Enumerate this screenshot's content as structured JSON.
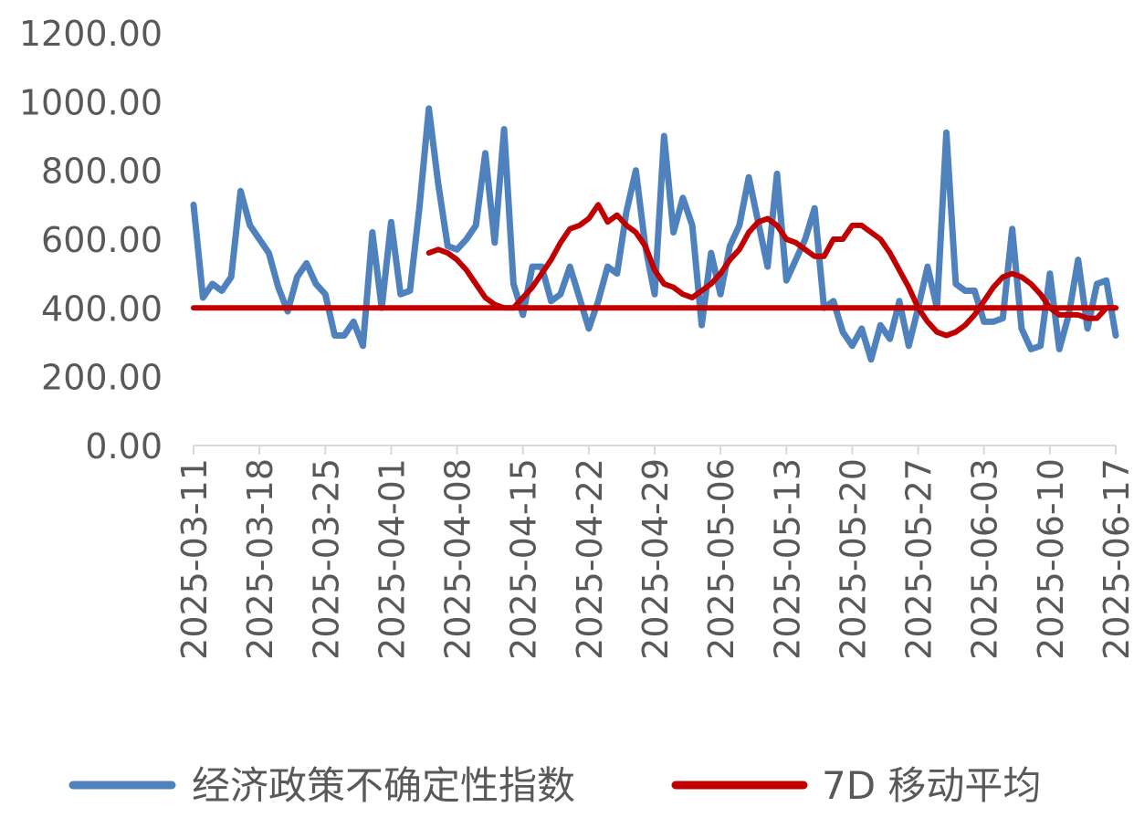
{
  "chart_data": {
    "type": "line",
    "title": "",
    "xlabel": "",
    "ylabel": "",
    "ylim": [
      0,
      1200
    ],
    "yticks": [
      "0.00",
      "200.00",
      "400.00",
      "600.00",
      "800.00",
      "1000.00",
      "1200.00"
    ],
    "xticks": [
      "2025-03-11",
      "2025-03-18",
      "2025-03-25",
      "2025-04-01",
      "2025-04-08",
      "2025-04-15",
      "2025-04-22",
      "2025-04-29",
      "2025-05-06",
      "2025-05-13",
      "2025-05-20",
      "2025-05-27",
      "2025-06-03",
      "2025-06-10",
      "2025-06-17"
    ],
    "x_start": "2025-03-11",
    "grid": false,
    "legend_position": "bottom",
    "series": [
      {
        "name": "经济政策不确定性指数",
        "color": "#4f81bd",
        "values": [
          700,
          430,
          470,
          450,
          490,
          740,
          640,
          600,
          560,
          460,
          390,
          490,
          530,
          470,
          440,
          320,
          320,
          360,
          290,
          620,
          400,
          650,
          440,
          450,
          690,
          980,
          760,
          580,
          570,
          600,
          640,
          850,
          590,
          920,
          470,
          380,
          520,
          520,
          420,
          440,
          520,
          430,
          340,
          420,
          520,
          500,
          680,
          800,
          580,
          440,
          900,
          620,
          720,
          640,
          350,
          560,
          440,
          580,
          640,
          780,
          650,
          520,
          790,
          480,
          540,
          600,
          690,
          400,
          420,
          330,
          290,
          340,
          250,
          350,
          310,
          420,
          290,
          400,
          520,
          400,
          910,
          470,
          450,
          450,
          360,
          360,
          370,
          630,
          340,
          280,
          290,
          500,
          280,
          380,
          540,
          340,
          470,
          480,
          320
        ]
      },
      {
        "name": "7D 移动平均",
        "color": "#c00000",
        "values": [
          null,
          null,
          null,
          null,
          null,
          null,
          null,
          560,
          570,
          560,
          540,
          510,
          470,
          430,
          410,
          400,
          400,
          430,
          460,
          500,
          540,
          590,
          630,
          640,
          660,
          700,
          650,
          670,
          640,
          620,
          580,
          510,
          470,
          460,
          440,
          430,
          450,
          470,
          500,
          540,
          570,
          620,
          650,
          660,
          640,
          600,
          590,
          570,
          550,
          550,
          600,
          600,
          640,
          640,
          620,
          600,
          560,
          510,
          460,
          400,
          360,
          330,
          320,
          330,
          350,
          380,
          420,
          460,
          490,
          500,
          490,
          470,
          440,
          400,
          380,
          380,
          380,
          370,
          370,
          400,
          400
        ],
        "offset": 18
      },
      {
        "name": "",
        "color": "#c00000",
        "values": [
          400,
          400
        ],
        "x_positions": [
          0,
          98
        ]
      }
    ]
  }
}
